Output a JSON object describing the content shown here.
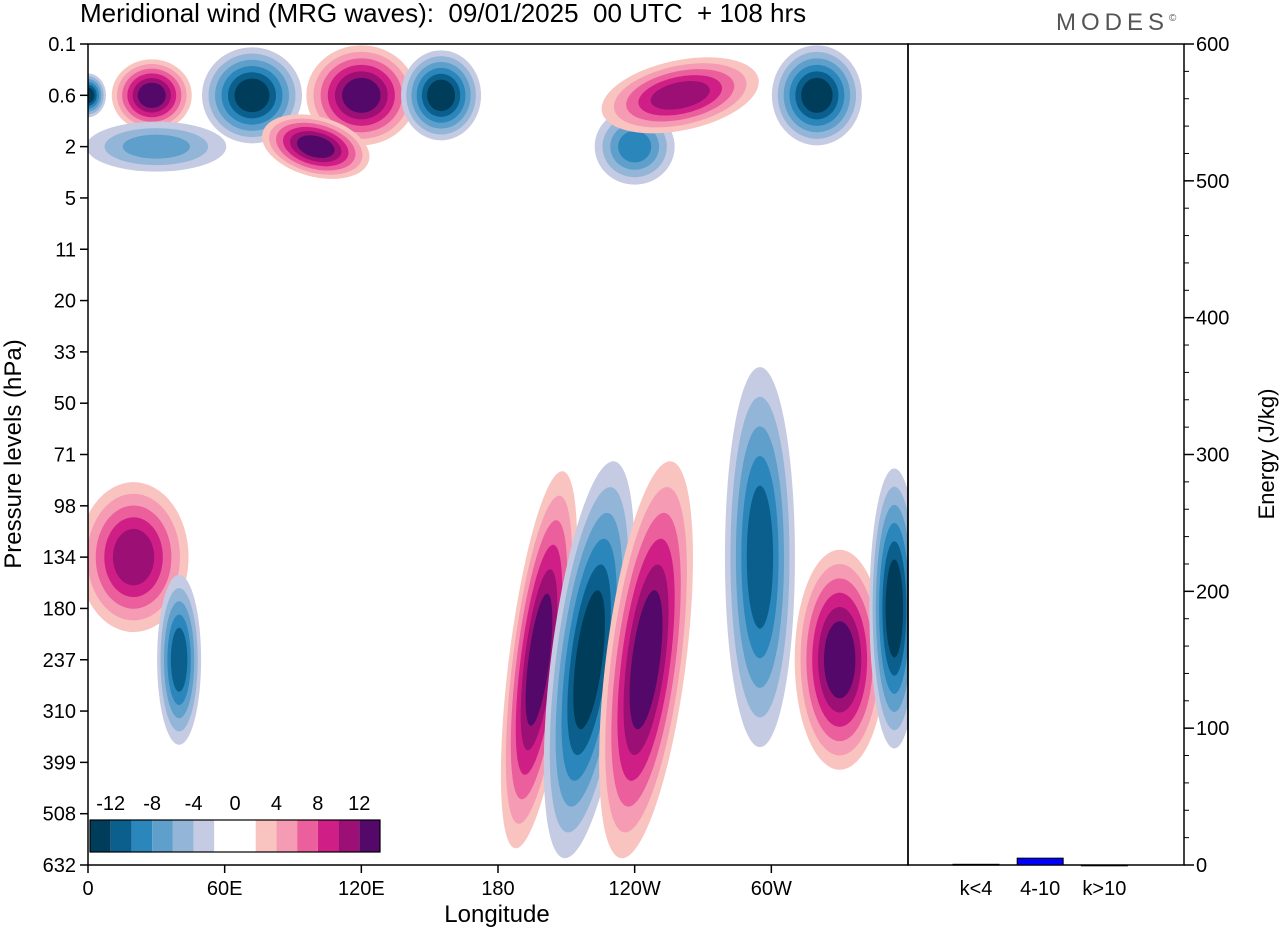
{
  "title": "Meridional wind (MRG waves):  09/01/2025  00 UTC  + 108 hrs",
  "brand": "MODES",
  "brand_mark": "©",
  "colors": {
    "neg": [
      "#003d5b",
      "#0b5f8c",
      "#2a86bb",
      "#5f9fcb",
      "#93b6d8",
      "#c5cbe3"
    ],
    "pos": [
      "#f9c3c0",
      "#f59bb3",
      "#ea5f9c",
      "#cf1f86",
      "#9c0f74",
      "#54086a"
    ],
    "bar": "#0000ff"
  },
  "chart_data": [
    {
      "type": "heatmap",
      "title": "Meridional wind (MRG waves):  09/01/2025  00 UTC  + 108 hrs",
      "xlabel": "Longitude",
      "ylabel": "Pressure levels (hPa)",
      "x_ticks": [
        "0",
        "60E",
        "120E",
        "180",
        "120W",
        "60W"
      ],
      "y_ticks": [
        "0.1",
        "0.6",
        "2",
        "5",
        "11",
        "20",
        "33",
        "50",
        "71",
        "98",
        "134",
        "180",
        "237",
        "310",
        "399",
        "508",
        "632"
      ],
      "colorbar": {
        "labels": [
          "-12",
          "-8",
          "-4",
          "0",
          "4",
          "8",
          "12"
        ],
        "levels": [
          -14,
          -12,
          -10,
          -8,
          -6,
          -4,
          -2,
          2,
          4,
          6,
          8,
          10,
          12,
          14
        ]
      },
      "features": [
        {
          "lon": 0,
          "level": "0.6",
          "value": -14
        },
        {
          "lon": 28,
          "level": "0.6",
          "value": 14
        },
        {
          "lon": 72,
          "level": "0.6",
          "value": -14
        },
        {
          "lon": 120,
          "level": "0.6",
          "value": 14
        },
        {
          "lon": 100,
          "level": "2",
          "value": 13
        },
        {
          "lon": 155,
          "level": "0.6",
          "value": -11
        },
        {
          "lon": 30,
          "level": "2",
          "value": -6
        },
        {
          "lon": 240,
          "level": "2",
          "value": -8
        },
        {
          "lon": 260,
          "level": "0.6",
          "value": 10
        },
        {
          "lon": 320,
          "level": "0.6",
          "value": -14
        },
        {
          "lon": 20,
          "level": "134",
          "value": 9
        },
        {
          "lon": 40,
          "level": "237",
          "value": -9
        },
        {
          "lon": 198,
          "level": "237",
          "value": 14
        },
        {
          "lon": 220,
          "level": "237",
          "value": -15
        },
        {
          "lon": 245,
          "level": "237",
          "value": 15
        },
        {
          "lon": 295,
          "level": "134",
          "value": -10
        },
        {
          "lon": 330,
          "level": "237",
          "value": 13
        },
        {
          "lon": 354,
          "level": "180",
          "value": -12
        }
      ]
    },
    {
      "type": "bar",
      "ylabel": "Energy (J/kg)",
      "categories": [
        "k<4",
        "4-10",
        "k>10"
      ],
      "values": [
        0.5,
        5,
        0
      ],
      "ylim": [
        0,
        600
      ],
      "y_ticks": [
        "0",
        "100",
        "200",
        "300",
        "400",
        "500",
        "600"
      ]
    }
  ]
}
